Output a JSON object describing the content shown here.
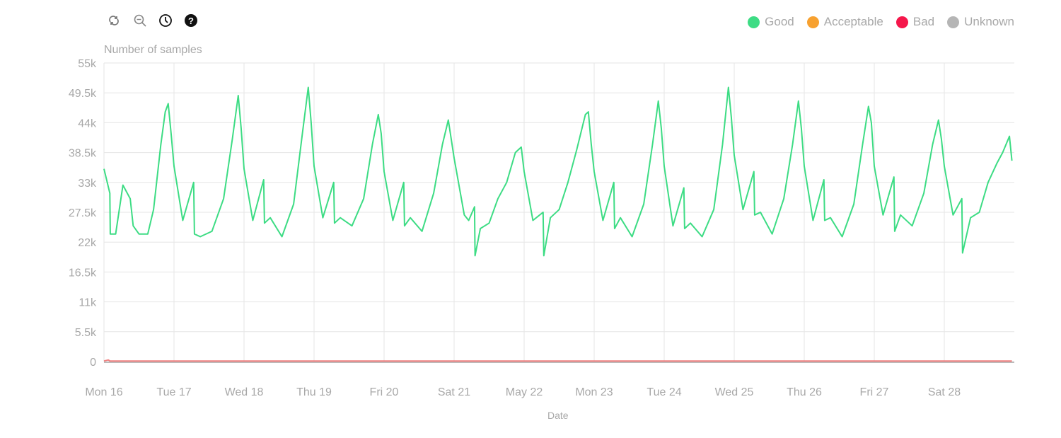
{
  "toolbar": {
    "icons": [
      "refresh-icon",
      "zoom-out-icon",
      "clock-icon",
      "help-icon"
    ]
  },
  "legend": [
    {
      "label": "Good",
      "color": "#3ddc84"
    },
    {
      "label": "Acceptable",
      "color": "#f7a130"
    },
    {
      "label": "Bad",
      "color": "#f5174b"
    },
    {
      "label": "Unknown",
      "color": "#b5b5b5"
    }
  ],
  "chart_data": {
    "type": "line",
    "ylabel": "Number of samples",
    "xlabel": "Date",
    "ylim": [
      0,
      55000
    ],
    "xlim": [
      "05-16 00:00",
      "05-29 00:00"
    ],
    "grid": true,
    "legend_position": "top-right",
    "y_ticks": [
      "0",
      "5.5k",
      "11k",
      "16.5k",
      "22k",
      "27.5k",
      "33k",
      "38.5k",
      "44k",
      "49.5k",
      "55k"
    ],
    "x_ticks": [
      "Mon 16",
      "Tue 17",
      "Wed 18",
      "Thu 19",
      "Fri 20",
      "Sat 21",
      "May 22",
      "Mon 23",
      "Tue 24",
      "Wed 25",
      "Thu 26",
      "Fri 27",
      "Sat 28"
    ],
    "series": [
      {
        "name": "Good",
        "color": "#3ddc84",
        "points": [
          [
            "05-16 00:00",
            35500
          ],
          [
            "05-16 02:00",
            31000
          ],
          [
            "05-16 02:10",
            23500
          ],
          [
            "05-16 04:00",
            23500
          ],
          [
            "05-16 06:30",
            32500
          ],
          [
            "05-16 09:00",
            30000
          ],
          [
            "05-16 10:00",
            25000
          ],
          [
            "05-16 12:00",
            23500
          ],
          [
            "05-16 15:00",
            23500
          ],
          [
            "05-16 17:00",
            28000
          ],
          [
            "05-16 19:30",
            40000
          ],
          [
            "05-16 21:00",
            46000
          ],
          [
            "05-16 22:00",
            47500
          ],
          [
            "05-16 23:00",
            42000
          ],
          [
            "05-17 00:00",
            36000
          ],
          [
            "05-17 03:00",
            26000
          ],
          [
            "05-17 06:45",
            33000
          ],
          [
            "05-17 07:00",
            23500
          ],
          [
            "05-17 09:00",
            23000
          ],
          [
            "05-17 13:00",
            24000
          ],
          [
            "05-17 17:00",
            30000
          ],
          [
            "05-17 20:00",
            41000
          ],
          [
            "05-17 22:00",
            49000
          ],
          [
            "05-17 23:00",
            43000
          ],
          [
            "05-18 00:00",
            35500
          ],
          [
            "05-18 03:00",
            26000
          ],
          [
            "05-18 06:45",
            33500
          ],
          [
            "05-18 07:00",
            25500
          ],
          [
            "05-18 09:00",
            26500
          ],
          [
            "05-18 13:00",
            23000
          ],
          [
            "05-18 17:00",
            29000
          ],
          [
            "05-18 20:00",
            42000
          ],
          [
            "05-18 22:00",
            50500
          ],
          [
            "05-18 23:00",
            44000
          ],
          [
            "05-19 00:00",
            36000
          ],
          [
            "05-19 03:00",
            26500
          ],
          [
            "05-19 06:45",
            33000
          ],
          [
            "05-19 07:00",
            25500
          ],
          [
            "05-19 09:00",
            26500
          ],
          [
            "05-19 13:00",
            25000
          ],
          [
            "05-19 17:00",
            30000
          ],
          [
            "05-19 20:00",
            40000
          ],
          [
            "05-19 22:00",
            45500
          ],
          [
            "05-19 23:00",
            42000
          ],
          [
            "05-20 00:00",
            35000
          ],
          [
            "05-20 03:00",
            26000
          ],
          [
            "05-20 06:45",
            33000
          ],
          [
            "05-20 07:00",
            25000
          ],
          [
            "05-20 09:00",
            26500
          ],
          [
            "05-20 13:00",
            24000
          ],
          [
            "05-20 17:00",
            31000
          ],
          [
            "05-20 20:00",
            40000
          ],
          [
            "05-20 22:00",
            44500
          ],
          [
            "05-20 23:00",
            41000
          ],
          [
            "05-21 00:00",
            37500
          ],
          [
            "05-21 03:30",
            27000
          ],
          [
            "05-21 05:00",
            26000
          ],
          [
            "05-21 07:00",
            28500
          ],
          [
            "05-21 07:10",
            19500
          ],
          [
            "05-21 09:00",
            24500
          ],
          [
            "05-21 12:00",
            25500
          ],
          [
            "05-21 15:00",
            30000
          ],
          [
            "05-21 18:00",
            33000
          ],
          [
            "05-21 21:00",
            38500
          ],
          [
            "05-21 23:00",
            39500
          ],
          [
            "05-22 00:00",
            35000
          ],
          [
            "05-22 03:00",
            26000
          ],
          [
            "05-22 06:30",
            27500
          ],
          [
            "05-22 06:45",
            19500
          ],
          [
            "05-22 09:00",
            26500
          ],
          [
            "05-22 12:00",
            28000
          ],
          [
            "05-22 15:00",
            33000
          ],
          [
            "05-22 18:00",
            39000
          ],
          [
            "05-22 21:00",
            45500
          ],
          [
            "05-22 22:00",
            46000
          ],
          [
            "05-22 23:00",
            40000
          ],
          [
            "05-23 00:00",
            35000
          ],
          [
            "05-23 03:00",
            26000
          ],
          [
            "05-23 06:45",
            33000
          ],
          [
            "05-23 07:00",
            24500
          ],
          [
            "05-23 09:00",
            26500
          ],
          [
            "05-23 13:00",
            23000
          ],
          [
            "05-23 17:00",
            29000
          ],
          [
            "05-23 20:00",
            40000
          ],
          [
            "05-23 22:00",
            48000
          ],
          [
            "05-23 23:00",
            43000
          ],
          [
            "05-24 00:00",
            36000
          ],
          [
            "05-24 03:00",
            25000
          ],
          [
            "05-24 06:45",
            32000
          ],
          [
            "05-24 07:00",
            24500
          ],
          [
            "05-24 09:00",
            25500
          ],
          [
            "05-24 13:00",
            23000
          ],
          [
            "05-24 17:00",
            28000
          ],
          [
            "05-24 20:00",
            40000
          ],
          [
            "05-24 22:00",
            50500
          ],
          [
            "05-24 23:00",
            45000
          ],
          [
            "05-25 00:00",
            38000
          ],
          [
            "05-25 03:00",
            28000
          ],
          [
            "05-25 06:45",
            35000
          ],
          [
            "05-25 07:00",
            27000
          ],
          [
            "05-25 09:00",
            27500
          ],
          [
            "05-25 13:00",
            23500
          ],
          [
            "05-25 17:00",
            30000
          ],
          [
            "05-25 20:00",
            40000
          ],
          [
            "05-25 22:00",
            48000
          ],
          [
            "05-25 23:00",
            43000
          ],
          [
            "05-26 00:00",
            36000
          ],
          [
            "05-26 03:00",
            26000
          ],
          [
            "05-26 06:45",
            33500
          ],
          [
            "05-26 07:00",
            26000
          ],
          [
            "05-26 09:00",
            26500
          ],
          [
            "05-26 13:00",
            23000
          ],
          [
            "05-26 17:00",
            29000
          ],
          [
            "05-26 20:00",
            40000
          ],
          [
            "05-26 22:00",
            47000
          ],
          [
            "05-26 23:00",
            44000
          ],
          [
            "05-27 00:00",
            36000
          ],
          [
            "05-27 03:00",
            27000
          ],
          [
            "05-27 06:45",
            34000
          ],
          [
            "05-27 07:00",
            24000
          ],
          [
            "05-27 09:00",
            27000
          ],
          [
            "05-27 13:00",
            25000
          ],
          [
            "05-27 17:00",
            31000
          ],
          [
            "05-27 20:00",
            40000
          ],
          [
            "05-27 22:00",
            44500
          ],
          [
            "05-27 23:00",
            41000
          ],
          [
            "05-28 00:00",
            36000
          ],
          [
            "05-28 03:00",
            27000
          ],
          [
            "05-28 06:00",
            30000
          ],
          [
            "05-28 06:15",
            20000
          ],
          [
            "05-28 09:00",
            26500
          ],
          [
            "05-28 12:00",
            27500
          ],
          [
            "05-28 15:00",
            33000
          ],
          [
            "05-28 18:00",
            36500
          ],
          [
            "05-28 20:00",
            38500
          ],
          [
            "05-28 22:20",
            41500
          ],
          [
            "05-28 23:10",
            37000
          ]
        ]
      },
      {
        "name": "Bad",
        "color": "#f5174b",
        "points": [
          [
            "05-16 00:00",
            100
          ],
          [
            "05-16 01:30",
            300
          ],
          [
            "05-16 02:00",
            100
          ],
          [
            "05-28 23:10",
            100
          ]
        ]
      }
    ]
  }
}
